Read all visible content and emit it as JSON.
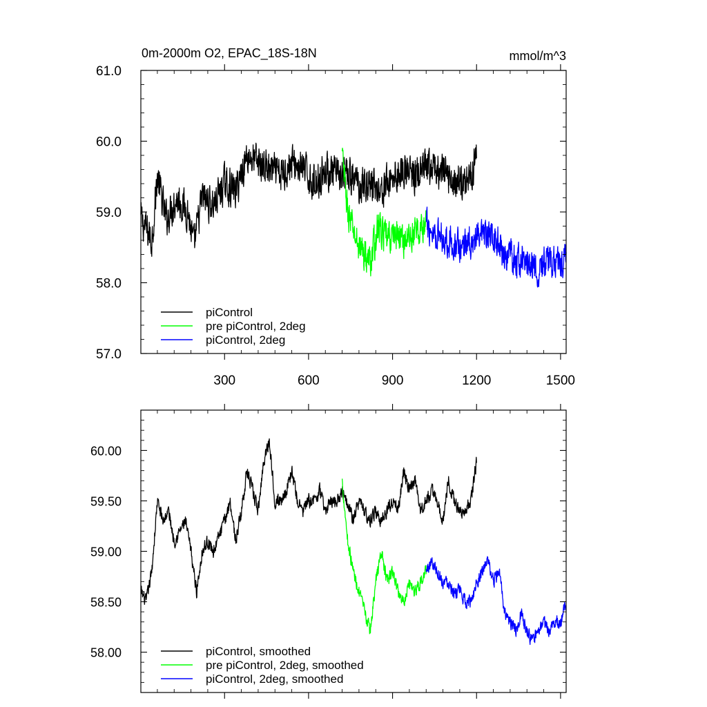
{
  "chart_data": [
    {
      "type": "line",
      "title": "0m-2000m O2, EPAC_18S-18N",
      "units": "mmol/m^3",
      "xlabel": "",
      "ylabel": "",
      "xlim": [
        1,
        1520
      ],
      "ylim": [
        57.0,
        61.0
      ],
      "xticks": [
        300,
        600,
        900,
        1200,
        1500
      ],
      "yticks": [
        57.0,
        58.0,
        59.0,
        60.0,
        61.0
      ],
      "ytick_labels": [
        "57.0",
        "58.0",
        "59.0",
        "60.0",
        "61.0"
      ],
      "legend_position": "lower-left",
      "series": [
        {
          "name": "piControl",
          "color": "#000000",
          "x_range": [
            1,
            1200
          ],
          "points": [
            [
              1,
              58.9
            ],
            [
              40,
              58.6
            ],
            [
              60,
              59.5
            ],
            [
              90,
              58.9
            ],
            [
              130,
              59.2
            ],
            [
              170,
              59.0
            ],
            [
              190,
              58.5
            ],
            [
              220,
              59.2
            ],
            [
              260,
              59.1
            ],
            [
              300,
              59.4
            ],
            [
              340,
              59.3
            ],
            [
              380,
              59.8
            ],
            [
              420,
              59.7
            ],
            [
              460,
              59.6
            ],
            [
              500,
              59.5
            ],
            [
              540,
              59.7
            ],
            [
              580,
              59.6
            ],
            [
              620,
              59.4
            ],
            [
              660,
              59.6
            ],
            [
              700,
              59.5
            ],
            [
              740,
              59.5
            ],
            [
              780,
              59.4
            ],
            [
              820,
              59.4
            ],
            [
              860,
              59.3
            ],
            [
              900,
              59.5
            ],
            [
              940,
              59.6
            ],
            [
              980,
              59.5
            ],
            [
              1020,
              59.6
            ],
            [
              1060,
              59.6
            ],
            [
              1100,
              59.5
            ],
            [
              1140,
              59.4
            ],
            [
              1180,
              59.5
            ],
            [
              1200,
              59.9
            ]
          ],
          "noise": 0.35
        },
        {
          "name": "pre piControl, 2deg",
          "color": "#00ff00",
          "x_range": [
            720,
            1020
          ],
          "points": [
            [
              720,
              59.8
            ],
            [
              740,
              59.0
            ],
            [
              770,
              58.6
            ],
            [
              800,
              58.4
            ],
            [
              820,
              58.3
            ],
            [
              850,
              58.8
            ],
            [
              880,
              58.6
            ],
            [
              910,
              58.7
            ],
            [
              940,
              58.6
            ],
            [
              980,
              58.7
            ],
            [
              1020,
              58.8
            ]
          ],
          "noise": 0.32
        },
        {
          "name": "piControl, 2deg",
          "color": "#0000ff",
          "x_range": [
            1020,
            1520
          ],
          "points": [
            [
              1020,
              58.8
            ],
            [
              1060,
              58.7
            ],
            [
              1100,
              58.6
            ],
            [
              1140,
              58.5
            ],
            [
              1180,
              58.6
            ],
            [
              1220,
              58.6
            ],
            [
              1260,
              58.7
            ],
            [
              1300,
              58.4
            ],
            [
              1340,
              58.3
            ],
            [
              1380,
              58.3
            ],
            [
              1420,
              58.2
            ],
            [
              1460,
              58.3
            ],
            [
              1500,
              58.3
            ],
            [
              1520,
              58.4
            ]
          ],
          "noise": 0.32
        }
      ]
    },
    {
      "type": "line",
      "title": "",
      "xlabel": "",
      "ylabel": "",
      "xlim": [
        1,
        1520
      ],
      "ylim": [
        57.6,
        60.4
      ],
      "xticks": [
        300,
        600,
        900,
        1200,
        1500
      ],
      "yticks": [
        58.0,
        58.5,
        59.0,
        59.5,
        60.0
      ],
      "ytick_labels": [
        "58.00",
        "58.50",
        "59.00",
        "59.50",
        "60.00"
      ],
      "legend_position": "lower-left",
      "series": [
        {
          "name": "piControl, smoothed",
          "color": "#000000",
          "x_range": [
            1,
            1200
          ],
          "points": [
            [
              1,
              58.6
            ],
            [
              20,
              58.5
            ],
            [
              40,
              58.8
            ],
            [
              60,
              59.5
            ],
            [
              80,
              59.3
            ],
            [
              100,
              59.4
            ],
            [
              120,
              59.1
            ],
            [
              140,
              59.2
            ],
            [
              160,
              59.3
            ],
            [
              180,
              59.0
            ],
            [
              200,
              58.6
            ],
            [
              220,
              59.0
            ],
            [
              240,
              59.1
            ],
            [
              260,
              59.0
            ],
            [
              300,
              59.3
            ],
            [
              320,
              59.5
            ],
            [
              340,
              59.1
            ],
            [
              360,
              59.4
            ],
            [
              380,
              59.8
            ],
            [
              400,
              59.6
            ],
            [
              420,
              59.4
            ],
            [
              440,
              59.9
            ],
            [
              460,
              60.1
            ],
            [
              480,
              59.5
            ],
            [
              500,
              59.5
            ],
            [
              520,
              59.6
            ],
            [
              540,
              59.8
            ],
            [
              560,
              59.5
            ],
            [
              580,
              59.4
            ],
            [
              600,
              59.5
            ],
            [
              620,
              59.5
            ],
            [
              640,
              59.6
            ],
            [
              660,
              59.4
            ],
            [
              680,
              59.5
            ],
            [
              700,
              59.5
            ],
            [
              720,
              59.6
            ],
            [
              740,
              59.5
            ],
            [
              760,
              59.3
            ],
            [
              780,
              59.5
            ],
            [
              800,
              59.4
            ],
            [
              820,
              59.3
            ],
            [
              840,
              59.4
            ],
            [
              860,
              59.3
            ],
            [
              880,
              59.4
            ],
            [
              900,
              59.5
            ],
            [
              920,
              59.4
            ],
            [
              940,
              59.8
            ],
            [
              960,
              59.6
            ],
            [
              980,
              59.7
            ],
            [
              1000,
              59.4
            ],
            [
              1020,
              59.5
            ],
            [
              1040,
              59.6
            ],
            [
              1060,
              59.5
            ],
            [
              1080,
              59.3
            ],
            [
              1100,
              59.7
            ],
            [
              1120,
              59.5
            ],
            [
              1140,
              59.4
            ],
            [
              1160,
              59.4
            ],
            [
              1180,
              59.5
            ],
            [
              1200,
              59.9
            ]
          ],
          "noise": 0.09
        },
        {
          "name": "pre piControl, 2deg, smoothed",
          "color": "#00ff00",
          "x_range": [
            720,
            1020
          ],
          "points": [
            [
              720,
              59.7
            ],
            [
              740,
              59.1
            ],
            [
              760,
              58.8
            ],
            [
              780,
              58.6
            ],
            [
              800,
              58.4
            ],
            [
              820,
              58.2
            ],
            [
              840,
              58.7
            ],
            [
              860,
              59.0
            ],
            [
              880,
              58.7
            ],
            [
              900,
              58.8
            ],
            [
              920,
              58.6
            ],
            [
              940,
              58.5
            ],
            [
              960,
              58.7
            ],
            [
              980,
              58.6
            ],
            [
              1000,
              58.7
            ],
            [
              1020,
              58.8
            ]
          ],
          "noise": 0.09
        },
        {
          "name": "piControl, 2deg, smoothed",
          "color": "#0000ff",
          "x_range": [
            1020,
            1520
          ],
          "points": [
            [
              1020,
              58.8
            ],
            [
              1040,
              58.9
            ],
            [
              1060,
              58.8
            ],
            [
              1080,
              58.7
            ],
            [
              1100,
              58.7
            ],
            [
              1120,
              58.6
            ],
            [
              1140,
              58.6
            ],
            [
              1160,
              58.5
            ],
            [
              1180,
              58.5
            ],
            [
              1200,
              58.7
            ],
            [
              1220,
              58.8
            ],
            [
              1240,
              58.9
            ],
            [
              1260,
              58.7
            ],
            [
              1280,
              58.8
            ],
            [
              1300,
              58.4
            ],
            [
              1320,
              58.3
            ],
            [
              1340,
              58.2
            ],
            [
              1360,
              58.4
            ],
            [
              1380,
              58.2
            ],
            [
              1400,
              58.1
            ],
            [
              1420,
              58.2
            ],
            [
              1440,
              58.3
            ],
            [
              1460,
              58.2
            ],
            [
              1480,
              58.3
            ],
            [
              1500,
              58.3
            ],
            [
              1520,
              58.5
            ]
          ],
          "noise": 0.09
        }
      ]
    }
  ]
}
